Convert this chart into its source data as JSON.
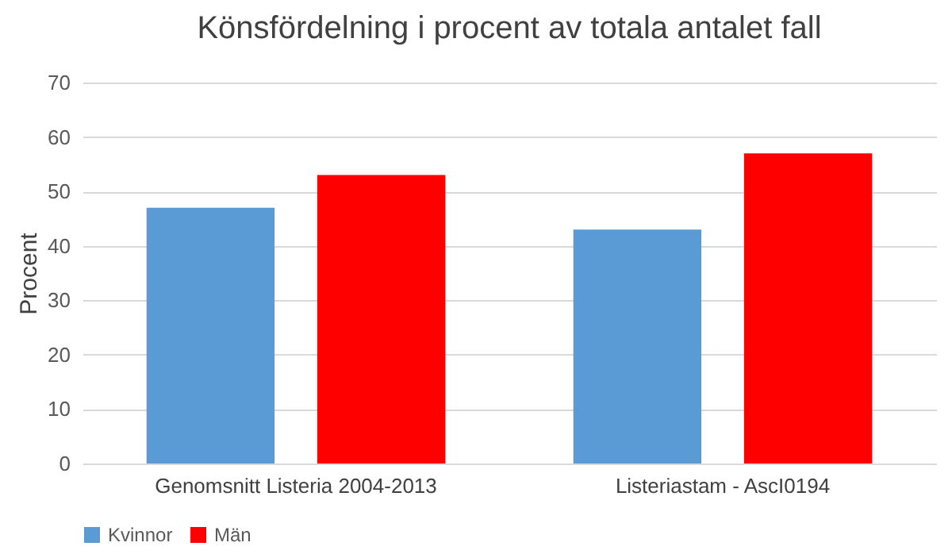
{
  "chart_data": {
    "type": "bar",
    "title": "Könsfördelning i procent av totala antalet fall",
    "ylabel": "Procent",
    "categories": [
      "Genomsnitt Listeria 2004-2013",
      "Listeriastam - AscI0194"
    ],
    "series": [
      {
        "name": "Kvinnor",
        "color": "#5b9bd5",
        "values": [
          47,
          43
        ]
      },
      {
        "name": "Män",
        "color": "#ff0000",
        "values": [
          53,
          57
        ]
      }
    ],
    "ylim": [
      0,
      70
    ],
    "yticks": [
      0,
      10,
      20,
      30,
      40,
      50,
      60,
      70
    ],
    "grid": "y",
    "legend": "bottom"
  }
}
